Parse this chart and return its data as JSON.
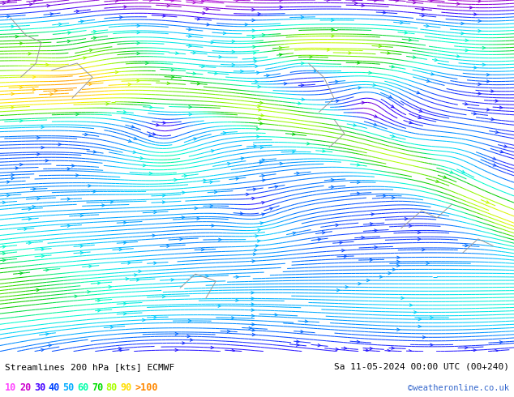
{
  "title_left": "Streamlines 200 hPa [kts] ECMWF",
  "title_right": "Sa 11-05-2024 00:00 UTC (00+240)",
  "copyright": "©weatheronline.co.uk",
  "legend_values": [
    "10",
    "20",
    "30",
    "40",
    "50",
    "60",
    "70",
    "80",
    "90",
    ">100"
  ],
  "legend_colors": [
    "#ff44ff",
    "#cc00cc",
    "#4400ff",
    "#0044ff",
    "#00aaff",
    "#00ffaa",
    "#00dd00",
    "#aaff00",
    "#ffdd00",
    "#ff8800"
  ],
  "background_color": "#ffffff",
  "fig_width": 6.34,
  "fig_height": 4.9,
  "speed_max": 110,
  "colormap": {
    "positions": [
      0.0,
      0.05,
      0.1,
      0.18,
      0.27,
      0.36,
      0.45,
      0.55,
      0.64,
      0.73,
      0.82,
      1.0
    ],
    "colors": [
      "#ffffff",
      "#ffccff",
      "#ff44ff",
      "#9900cc",
      "#3300ff",
      "#0066ff",
      "#00ccff",
      "#00ffcc",
      "#00cc00",
      "#aaff00",
      "#ffee00",
      "#ff8800"
    ]
  }
}
